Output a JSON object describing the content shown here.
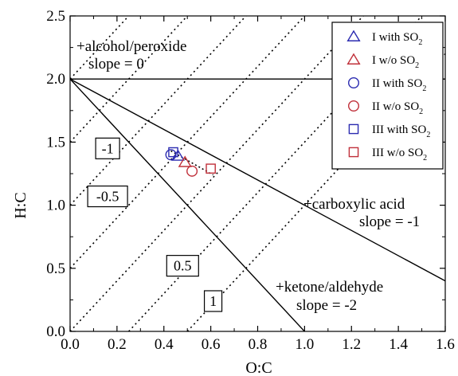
{
  "chart_data": {
    "type": "scatter",
    "xlabel": "O:C",
    "ylabel": "H:C",
    "xlim": [
      0.0,
      1.6
    ],
    "ylim": [
      0.0,
      2.5
    ],
    "xticks": [
      "0.0",
      "0.2",
      "0.4",
      "0.6",
      "0.8",
      "1.0",
      "1.2",
      "1.4",
      "1.6"
    ],
    "yticks": [
      "0.0",
      "0.5",
      "1.0",
      "1.5",
      "2.0",
      "2.5"
    ],
    "xtick_values": [
      0.0,
      0.2,
      0.4,
      0.6,
      0.8,
      1.0,
      1.2,
      1.4,
      1.6
    ],
    "ytick_values": [
      0.0,
      0.5,
      1.0,
      1.5,
      2.0,
      2.5
    ],
    "grid": false,
    "legend_position": "top-right",
    "series": [
      {
        "name": "I with SO2",
        "label_main": "I with SO",
        "label_sub": "2",
        "marker": "triangle",
        "color": "#2b2bb0",
        "points": [
          [
            0.46,
            1.39
          ]
        ]
      },
      {
        "name": "I w/o SO2",
        "label_main": "I w/o SO",
        "label_sub": "2",
        "marker": "triangle",
        "color": "#c0303a",
        "points": [
          [
            0.49,
            1.34
          ]
        ]
      },
      {
        "name": "II with SO2",
        "label_main": "II with SO",
        "label_sub": "2",
        "marker": "circle",
        "color": "#2b2bb0",
        "points": [
          [
            0.43,
            1.4
          ]
        ]
      },
      {
        "name": "II w/o SO2",
        "label_main": "II w/o SO",
        "label_sub": "2",
        "marker": "circle",
        "color": "#c0303a",
        "points": [
          [
            0.52,
            1.27
          ]
        ]
      },
      {
        "name": "III with SO2",
        "label_main": "III with SO",
        "label_sub": "2",
        "marker": "square",
        "color": "#2b2bb0",
        "points": [
          [
            0.44,
            1.42
          ]
        ]
      },
      {
        "name": "III w/o SO2",
        "label_main": "III w/o SO",
        "label_sub": "2",
        "marker": "square",
        "color": "#c0303a",
        "points": [
          [
            0.6,
            1.29
          ]
        ]
      }
    ],
    "reference_lines": [
      {
        "slope": 0,
        "intercept": 2.0,
        "style": "solid"
      },
      {
        "slope": -1,
        "intercept": 2.0,
        "style": "solid"
      },
      {
        "slope": -2,
        "intercept": 2.0,
        "style": "solid"
      },
      {
        "slope": 2,
        "intercept": 2.0,
        "style": "dotted"
      },
      {
        "slope": 2,
        "intercept": 1.5,
        "style": "dotted"
      },
      {
        "slope": 2,
        "intercept": 1.0,
        "style": "dotted"
      },
      {
        "slope": 2,
        "intercept": 0.5,
        "style": "dotted"
      },
      {
        "slope": 2,
        "intercept": 0.0,
        "style": "dotted"
      },
      {
        "slope": 2,
        "intercept": -0.5,
        "style": "dotted"
      },
      {
        "slope": 2,
        "intercept": -1.0,
        "style": "dotted"
      }
    ],
    "trend_segment": {
      "from": [
        0.43,
        1.43
      ],
      "to": [
        0.61,
        1.24
      ],
      "style": "dotted"
    },
    "annotations": {
      "alcohol_line1": "+alcohol/peroxide",
      "alcohol_line2": "slope = 0",
      "carboxylic_line1": "+carboxylic acid",
      "carboxylic_line2": "slope = -1",
      "ketone_line1": "+ketone/aldehyde",
      "ketone_line2": "slope = -2"
    },
    "oxidation_state_labels": [
      {
        "text": "-1",
        "at": [
          0.16,
          1.45
        ]
      },
      {
        "text": "-0.5",
        "at": [
          0.16,
          1.07
        ]
      },
      {
        "text": "0.5",
        "at": [
          0.48,
          0.52
        ]
      },
      {
        "text": "1",
        "at": [
          0.61,
          0.24
        ]
      }
    ]
  }
}
